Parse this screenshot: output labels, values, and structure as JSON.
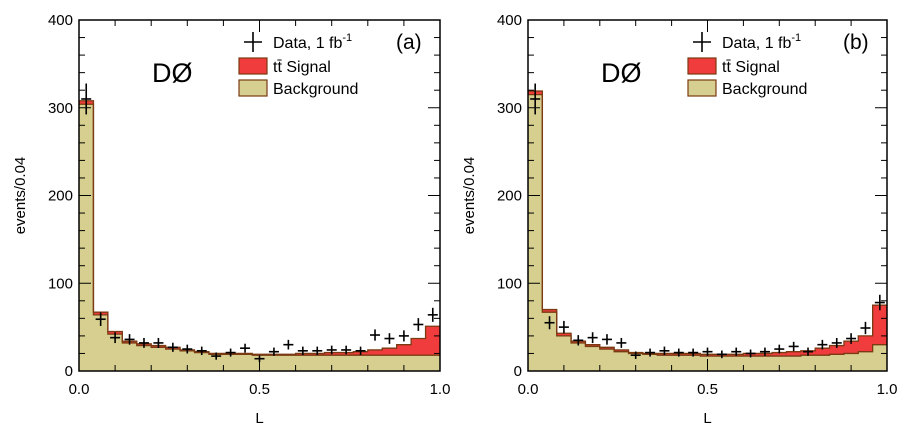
{
  "figure": {
    "colors": {
      "signal": "#f03c3c",
      "background_fill": "#d6cf8f",
      "background_line": "#7a3a12",
      "frame": "#000000"
    }
  },
  "chart_data": [
    {
      "type": "histogram",
      "panel": "(a)",
      "experiment": "DØ",
      "xlabel": "L",
      "ylabel": "events/0.04",
      "xlim": [
        0.0,
        1.0
      ],
      "ylim": [
        0,
        400
      ],
      "x_ticks": [
        "0.0",
        "0.5",
        "1.0"
      ],
      "y_ticks": [
        "0",
        "100",
        "200",
        "300",
        "400"
      ],
      "grid": false,
      "legend_position": "top-right",
      "legend": {
        "data": "Data, 1 fb",
        "data_sup": "-1",
        "signal": "tt̄ Signal",
        "background": "Background"
      },
      "bin_edges": [
        0.0,
        0.04,
        0.08,
        0.12,
        0.16,
        0.2,
        0.24,
        0.28,
        0.32,
        0.36,
        0.4,
        0.44,
        0.48,
        0.52,
        0.56,
        0.6,
        0.64,
        0.68,
        0.72,
        0.76,
        0.8,
        0.84,
        0.88,
        0.92,
        0.96,
        1.0
      ],
      "series": [
        {
          "name": "Background",
          "values": [
            304,
            64,
            42,
            32,
            29,
            27,
            25,
            23,
            21,
            19,
            19,
            19,
            18,
            18,
            18,
            18,
            18,
            18,
            18,
            18,
            18,
            18,
            18,
            18,
            18
          ]
        },
        {
          "name": "tt̄ Signal",
          "values": [
            4,
            3,
            3,
            2,
            2,
            2,
            2,
            1,
            1,
            1,
            1,
            1,
            1,
            1,
            1,
            2,
            2,
            3,
            3,
            4,
            6,
            8,
            12,
            19,
            33
          ]
        },
        {
          "name": "Data, 1 fb-1",
          "values": [
            310,
            59,
            38,
            36,
            32,
            32,
            27,
            25,
            23,
            17,
            21,
            26,
            14,
            22,
            30,
            23,
            23,
            24,
            24,
            23,
            41,
            37,
            40,
            53,
            64
          ]
        }
      ]
    },
    {
      "type": "histogram",
      "panel": "(b)",
      "experiment": "DØ",
      "xlabel": "L",
      "ylabel": "events/0.04",
      "xlim": [
        0.0,
        1.0
      ],
      "ylim": [
        0,
        400
      ],
      "x_ticks": [
        "0.0",
        "0.5",
        "1.0"
      ],
      "y_ticks": [
        "0",
        "100",
        "200",
        "300",
        "400"
      ],
      "grid": false,
      "legend_position": "top-right",
      "legend": {
        "data": "Data, 1 fb",
        "data_sup": "-1",
        "signal": "tt̄ Signal",
        "background": "Background"
      },
      "bin_edges": [
        0.0,
        0.04,
        0.08,
        0.12,
        0.16,
        0.2,
        0.24,
        0.28,
        0.32,
        0.36,
        0.4,
        0.44,
        0.48,
        0.52,
        0.56,
        0.6,
        0.64,
        0.68,
        0.72,
        0.76,
        0.8,
        0.84,
        0.88,
        0.92,
        0.96,
        1.0
      ],
      "series": [
        {
          "name": "Background",
          "values": [
            315,
            67,
            40,
            32,
            28,
            25,
            22,
            20,
            19,
            18,
            18,
            18,
            17,
            17,
            17,
            17,
            17,
            17,
            17,
            18,
            18,
            19,
            20,
            22,
            30
          ]
        },
        {
          "name": "tt̄ Signal",
          "values": [
            4,
            3,
            3,
            2,
            2,
            2,
            2,
            1,
            1,
            2,
            2,
            2,
            2,
            2,
            2,
            3,
            3,
            4,
            5,
            5,
            8,
            10,
            14,
            18,
            45
          ]
        },
        {
          "name": "Data, 1 fb-1",
          "values": [
            310,
            55,
            50,
            35,
            38,
            36,
            32,
            18,
            21,
            23,
            21,
            21,
            22,
            19,
            22,
            20,
            22,
            25,
            28,
            22,
            30,
            32,
            37,
            49,
            78
          ]
        }
      ]
    }
  ]
}
